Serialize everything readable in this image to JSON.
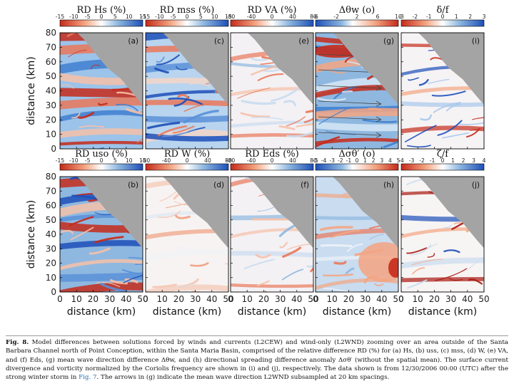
{
  "figure": {
    "caption": {
      "fig_label": "Fig. 8.",
      "text_before_link": "Model differences between solutions forced by winds and currents (L2CEW) and wind-only (L2WND) zooming over an area outside of the Santa Barbara Channel north of Point Conception, within the Santa Maria Basin, comprised of the relative difference RD (%) for (a) Hs, (b) uss, (c) mss, (d) W, (e) VA, and (f) Eds, (g) mean wave direction difference Δθw, and (h) directional spreading difference anomaly Δσθ′ (without the spatial mean). The surface current divergence and vorticity normalized by the Coriolis frequency are shown in (i) and (j), respectively. The data shown is from 12/30/2006 00:00 (UTC) after the strong winter storm in",
      "link_text": "Fig. 7",
      "text_after_link": ". The arrows in (g) indicate the mean wave direction L2WND subsampled at 20 km spacings."
    },
    "x_axis_label": "distance (km)",
    "y_axis_label": "distance (km)",
    "x_ticks": [
      "0",
      "10",
      "20",
      "30",
      "40",
      "50"
    ],
    "y_ticks": [
      "0",
      "10",
      "20",
      "30",
      "40",
      "50",
      "60",
      "70",
      "80"
    ]
  },
  "chart_data": [
    {
      "panel": "a",
      "type": "heatmap",
      "title": "RD Hs (%)",
      "colorbar_ticks": [
        "-15",
        "-10",
        "-5",
        "0",
        "5",
        "10",
        "15"
      ],
      "colormap": "red-white-blue",
      "xlim": [
        0,
        50
      ],
      "ylim": [
        0,
        80
      ]
    },
    {
      "panel": "c",
      "type": "heatmap",
      "title": "RD mss (%)",
      "colorbar_ticks": [
        "-15",
        "-10",
        "-5",
        "0",
        "5",
        "10",
        "15"
      ],
      "colormap": "red-white-blue",
      "xlim": [
        0,
        50
      ],
      "ylim": [
        0,
        80
      ]
    },
    {
      "panel": "e",
      "type": "heatmap",
      "title": "RD VA (%)",
      "colorbar_ticks": [
        "-80",
        "-40",
        "0",
        "40",
        "80"
      ],
      "colormap": "red-white-blue",
      "xlim": [
        0,
        50
      ],
      "ylim": [
        0,
        80
      ]
    },
    {
      "panel": "g",
      "type": "heatmap",
      "title": "Δθw (o)",
      "colorbar_ticks": [
        "-6",
        "-2",
        "2",
        "6",
        "10"
      ],
      "colormap": "blue-white-red",
      "xlim": [
        0,
        50
      ],
      "ylim": [
        0,
        80
      ]
    },
    {
      "panel": "i",
      "type": "heatmap",
      "title": "δ/f",
      "colorbar_ticks": [
        "-3",
        "-2",
        "-1",
        "0",
        "1",
        "2",
        "3"
      ],
      "colormap": "red-white-blue",
      "xlim": [
        0,
        50
      ],
      "ylim": [
        0,
        80
      ]
    },
    {
      "panel": "b",
      "type": "heatmap",
      "title": "RD uso (%)",
      "colorbar_ticks": [
        "-15",
        "-10",
        "-5",
        "0",
        "5",
        "10",
        "15"
      ],
      "colormap": "red-white-blue",
      "xlim": [
        0,
        50
      ],
      "ylim": [
        0,
        80
      ]
    },
    {
      "panel": "d",
      "type": "heatmap",
      "title": "RD W (%)",
      "colorbar_ticks": [
        "-80",
        "-40",
        "0",
        "40",
        "80"
      ],
      "colormap": "red-white-blue",
      "xlim": [
        0,
        50
      ],
      "ylim": [
        0,
        80
      ]
    },
    {
      "panel": "f",
      "type": "heatmap",
      "title": "RD Eds (%)",
      "colorbar_ticks": [
        "-80",
        "-40",
        "0",
        "40",
        "80"
      ],
      "colormap": "red-white-blue",
      "xlim": [
        0,
        50
      ],
      "ylim": [
        0,
        80
      ]
    },
    {
      "panel": "h",
      "type": "heatmap",
      "title": "Δσθ′ (o)",
      "colorbar_ticks": [
        "-5",
        "-4",
        "-3",
        "-2",
        "-1",
        "0",
        "1",
        "2",
        "3",
        "4",
        "5"
      ],
      "colormap": "blue-white-red",
      "xlim": [
        0,
        50
      ],
      "ylim": [
        0,
        80
      ]
    },
    {
      "panel": "j",
      "type": "heatmap",
      "title": "ζ/f",
      "colorbar_ticks": [
        "-4",
        "-3",
        "-2",
        "-1",
        "0",
        "1",
        "2",
        "3",
        "4"
      ],
      "colormap": "red-white-blue",
      "xlim": [
        0,
        50
      ],
      "ylim": [
        0,
        80
      ]
    }
  ],
  "colors": {
    "land": "#a4a4a4",
    "strong_positive": "#1d4fb8",
    "strong_negative": "#c62a1a",
    "neutral": "#ffffff"
  }
}
